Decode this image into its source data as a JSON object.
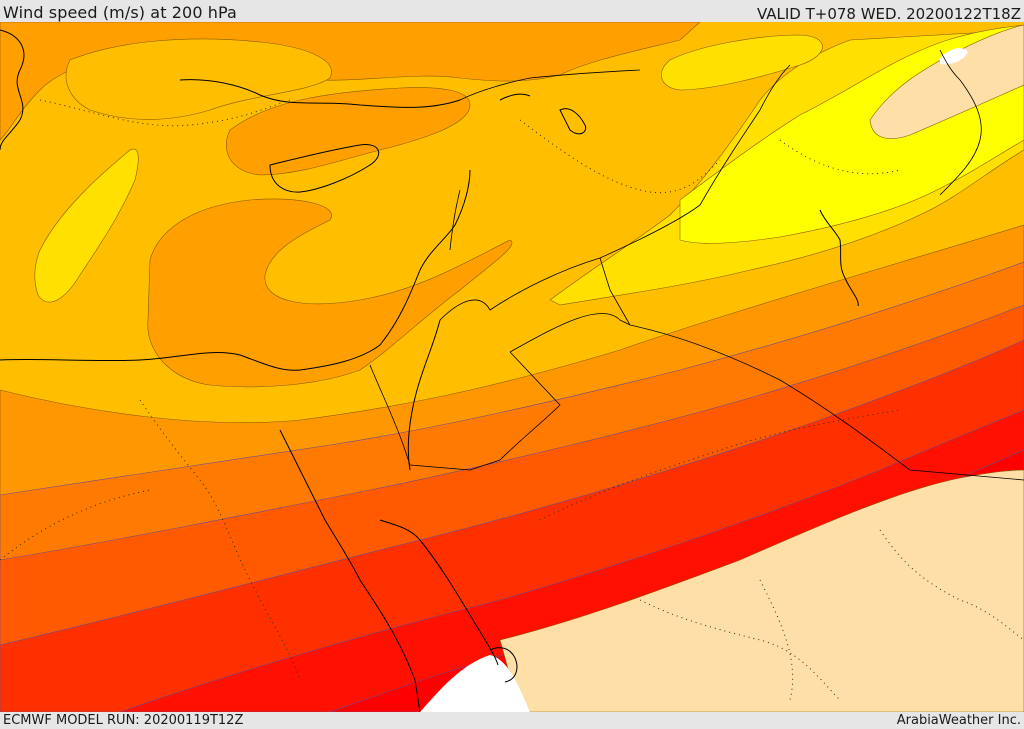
{
  "header": {
    "title": "Wind speed (m/s) at 200 hPa",
    "valid": "VALID T+078 WED. 20200122T18Z"
  },
  "footer": {
    "model_run": "ECMWF MODEL RUN: 20200119T12Z",
    "credit": "ArabiaWeather Inc."
  },
  "map": {
    "palette": {
      "lightest": "#ffdfa8",
      "yellow": "#ffff00",
      "gold": "#ffe000",
      "amber": "#ffbf00",
      "orange_light": "#ffa000",
      "orange": "#ff8000",
      "orange_dark": "#ff6000",
      "red_orange": "#ff4000",
      "red_light": "#ff2000",
      "red": "#ff0000",
      "land_white": "#ffffff"
    }
  }
}
